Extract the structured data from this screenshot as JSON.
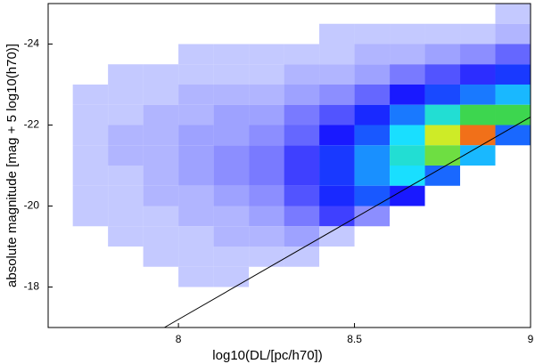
{
  "chart_data": {
    "type": "heatmap",
    "xlabel": "log10(DL/[pc/h70])",
    "ylabel": "absolute magnitude [mag + 5 log10(h70)]",
    "xlim": [
      7.63,
      9.0
    ],
    "ylim": [
      -17,
      -25
    ],
    "xticks": [
      8,
      8.5,
      9
    ],
    "yticks": [
      -24,
      -22,
      -20,
      -18
    ],
    "xbins": [
      7.7,
      7.8,
      7.9,
      8.0,
      8.1,
      8.2,
      8.3,
      8.4,
      8.5,
      8.6,
      8.7,
      8.8,
      8.9,
      9.0
    ],
    "ybins": [
      -25,
      -24.5,
      -24,
      -23.5,
      -23,
      -22.5,
      -22,
      -21.5,
      -21,
      -20.5,
      -20,
      -19.5,
      -19,
      -18.5,
      -18,
      -17.5,
      -17
    ],
    "counts": [
      [
        0,
        0,
        0,
        0,
        0,
        0,
        0,
        0,
        0,
        0,
        0,
        0,
        1
      ],
      [
        0,
        0,
        0,
        0,
        0,
        0,
        0,
        1,
        1,
        1,
        1,
        1,
        2
      ],
      [
        0,
        0,
        0,
        1,
        1,
        1,
        1,
        1,
        2,
        2,
        3,
        4,
        6
      ],
      [
        0,
        1,
        1,
        1,
        1,
        1,
        2,
        2,
        3,
        5,
        7,
        9,
        14
      ],
      [
        1,
        1,
        1,
        2,
        2,
        2,
        3,
        4,
        6,
        10,
        16,
        22,
        30
      ],
      [
        1,
        1,
        2,
        2,
        3,
        3,
        5,
        7,
        12,
        22,
        40,
        55,
        55
      ],
      [
        1,
        2,
        2,
        3,
        3,
        4,
        6,
        10,
        18,
        35,
        70,
        90,
        20
      ],
      [
        1,
        2,
        2,
        3,
        4,
        5,
        8,
        14,
        25,
        40,
        60,
        30,
        0
      ],
      [
        1,
        1,
        2,
        3,
        4,
        5,
        8,
        14,
        25,
        35,
        20,
        0,
        0
      ],
      [
        1,
        1,
        2,
        2,
        3,
        4,
        7,
        12,
        18,
        10,
        0,
        0,
        0
      ],
      [
        1,
        1,
        1,
        2,
        2,
        3,
        5,
        8,
        4,
        0,
        0,
        0,
        0
      ],
      [
        0,
        1,
        1,
        1,
        2,
        2,
        3,
        1,
        0,
        0,
        0,
        0,
        0
      ],
      [
        0,
        0,
        1,
        1,
        1,
        1,
        1,
        0,
        0,
        0,
        0,
        0,
        0
      ],
      [
        0,
        0,
        0,
        1,
        1,
        0,
        0,
        0,
        0,
        0,
        0,
        0,
        0
      ],
      [
        0,
        0,
        0,
        0,
        0,
        0,
        0,
        0,
        0,
        0,
        0,
        0,
        0
      ],
      [
        0,
        0,
        0,
        0,
        0,
        0,
        0,
        0,
        0,
        0,
        0,
        0,
        0
      ]
    ],
    "line": {
      "x": [
        7.96,
        9.0
      ],
      "y": [
        -17,
        -22.2
      ],
      "color": "#000000"
    }
  }
}
